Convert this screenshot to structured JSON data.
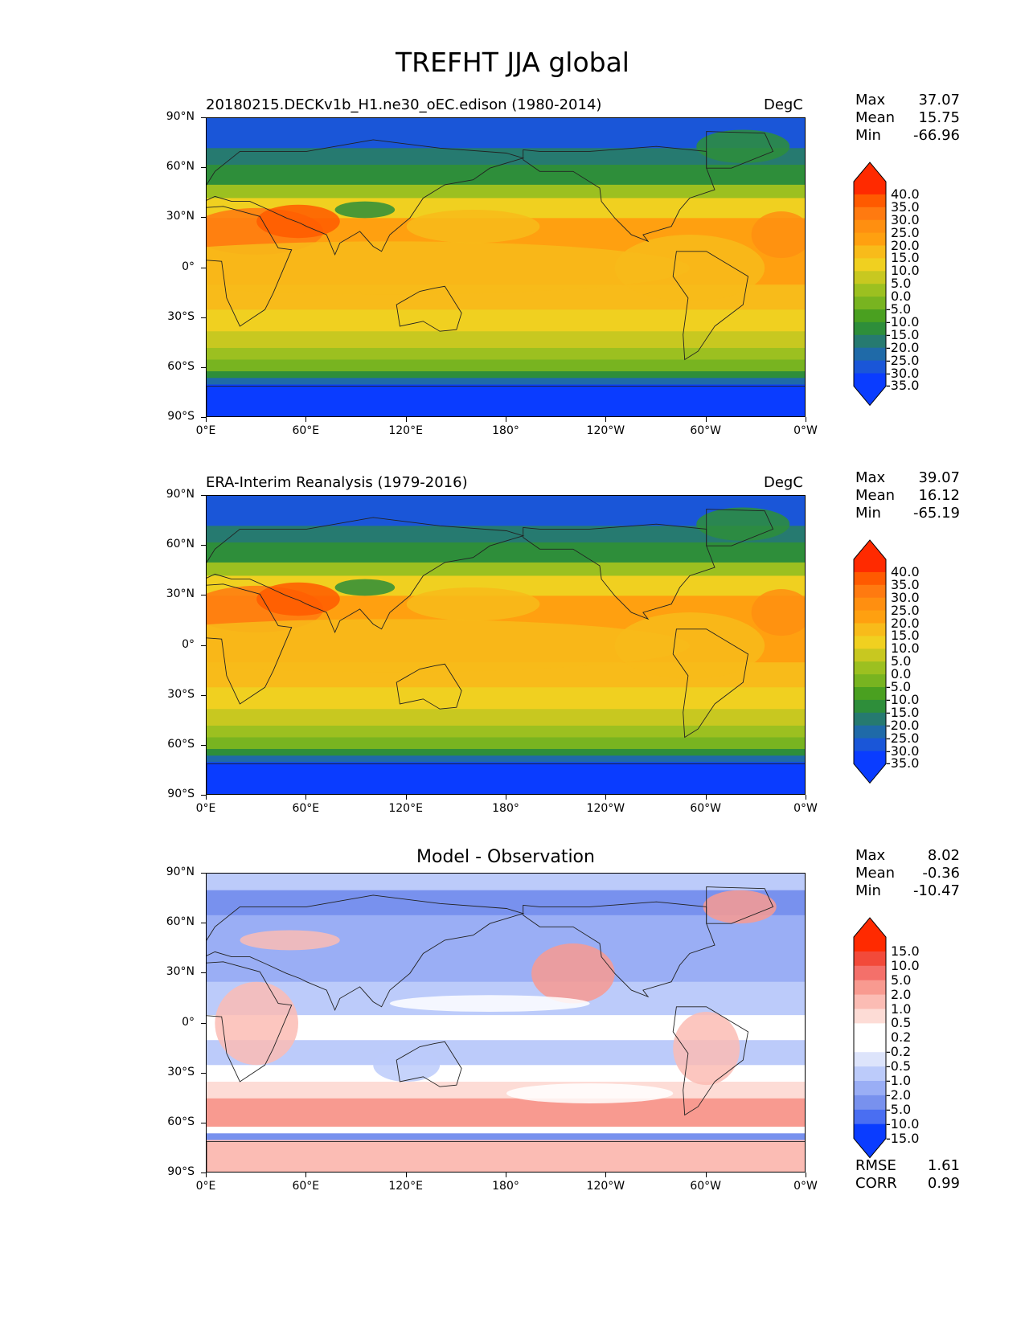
{
  "figure_title": "TREFHT JJA global",
  "panels": [
    {
      "id": "model",
      "title_left": "20180215.DECKv1b_H1.ne30_oEC.edison (1980-2014)",
      "title_right": "DegC",
      "stats": {
        "max_label": "Max",
        "max": "37.07",
        "mean_label": "Mean",
        "mean": "15.75",
        "min_label": "Min",
        "min": "-66.96"
      },
      "colorbar": {
        "levels": [
          "40.0",
          "35.0",
          "30.0",
          "25.0",
          "20.0",
          "15.0",
          "10.0",
          "5.0",
          "0.0",
          "-5.0",
          "-10.0",
          "-15.0",
          "-20.0",
          "-25.0",
          "-30.0",
          "-35.0"
        ]
      }
    },
    {
      "id": "obs",
      "title_left": "ERA-Interim Reanalysis (1979-2016)",
      "title_right": "DegC",
      "stats": {
        "max_label": "Max",
        "max": "39.07",
        "mean_label": "Mean",
        "mean": "16.12",
        "min_label": "Min",
        "min": "-65.19"
      },
      "colorbar": {
        "levels": [
          "40.0",
          "35.0",
          "30.0",
          "25.0",
          "20.0",
          "15.0",
          "10.0",
          "5.0",
          "0.0",
          "-5.0",
          "-10.0",
          "-15.0",
          "-20.0",
          "-25.0",
          "-30.0",
          "-35.0"
        ]
      }
    },
    {
      "id": "diff",
      "title_center": "Model - Observation",
      "stats": {
        "max_label": "Max",
        "max": "8.02",
        "mean_label": "Mean",
        "mean": "-0.36",
        "min_label": "Min",
        "min": "-10.47"
      },
      "colorbar": {
        "levels": [
          "15.0",
          "10.0",
          "5.0",
          "2.0",
          "1.0",
          "0.5",
          "0.2",
          "-0.2",
          "-0.5",
          "-1.0",
          "-2.0",
          "-5.0",
          "-10.0",
          "-15.0"
        ]
      },
      "metrics": {
        "rmse_label": "RMSE",
        "rmse": "1.61",
        "corr_label": "CORR",
        "corr": "0.99"
      }
    }
  ],
  "axes": {
    "y_ticks": [
      "90°N",
      "60°N",
      "30°N",
      "0°",
      "30°S",
      "60°S",
      "90°S"
    ],
    "x_ticks": [
      "0°E",
      "60°E",
      "120°E",
      "180°",
      "120°W",
      "60°W",
      "0°W"
    ]
  },
  "colors": {
    "abs_scale": [
      "#ff2a00",
      "#ff5a00",
      "#ff7a10",
      "#ff8f10",
      "#ffa010",
      "#f8bb1a",
      "#f0d020",
      "#c8c820",
      "#9cc020",
      "#78b420",
      "#4aa020",
      "#2e8e3a",
      "#267a70",
      "#1f6aa8",
      "#1a56d8",
      "#0a3cff"
    ],
    "diff_scale": [
      "#ff2a00",
      "#f24a3a",
      "#f4706a",
      "#f89a90",
      "#fbbcb4",
      "#fddcd6",
      "#ffffff",
      "#ffffff",
      "#dde4fb",
      "#bccbfa",
      "#9aaef5",
      "#7891ee",
      "#4a6ef2",
      "#0a3cff"
    ]
  }
}
